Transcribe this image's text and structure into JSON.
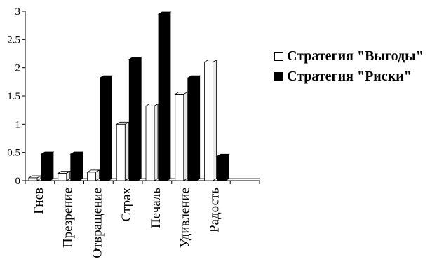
{
  "chart_data": {
    "type": "bar",
    "categories": [
      "Гнев",
      "Презрение",
      "Отвращение",
      "Страх",
      "Печаль",
      "Удивление",
      "Радость",
      ""
    ],
    "series": [
      {
        "name": "Стратегия \"Выгоды\"",
        "values": [
          0.05,
          0.13,
          0.15,
          1.0,
          1.32,
          1.53,
          2.1,
          0
        ],
        "color": "#ffffff"
      },
      {
        "name": "Стратегия \"Риски\"",
        "values": [
          0.47,
          0.47,
          1.82,
          2.15,
          2.95,
          1.82,
          0.43,
          0
        ],
        "color": "#000000"
      }
    ],
    "yticks": [
      "0",
      "0.5",
      "1",
      "1.5",
      "2",
      "2.5",
      "3"
    ],
    "ylim": [
      0,
      3
    ],
    "title": "",
    "xlabel": "",
    "ylabel": "",
    "grid": false,
    "legend_position": "right",
    "style": "3d"
  }
}
